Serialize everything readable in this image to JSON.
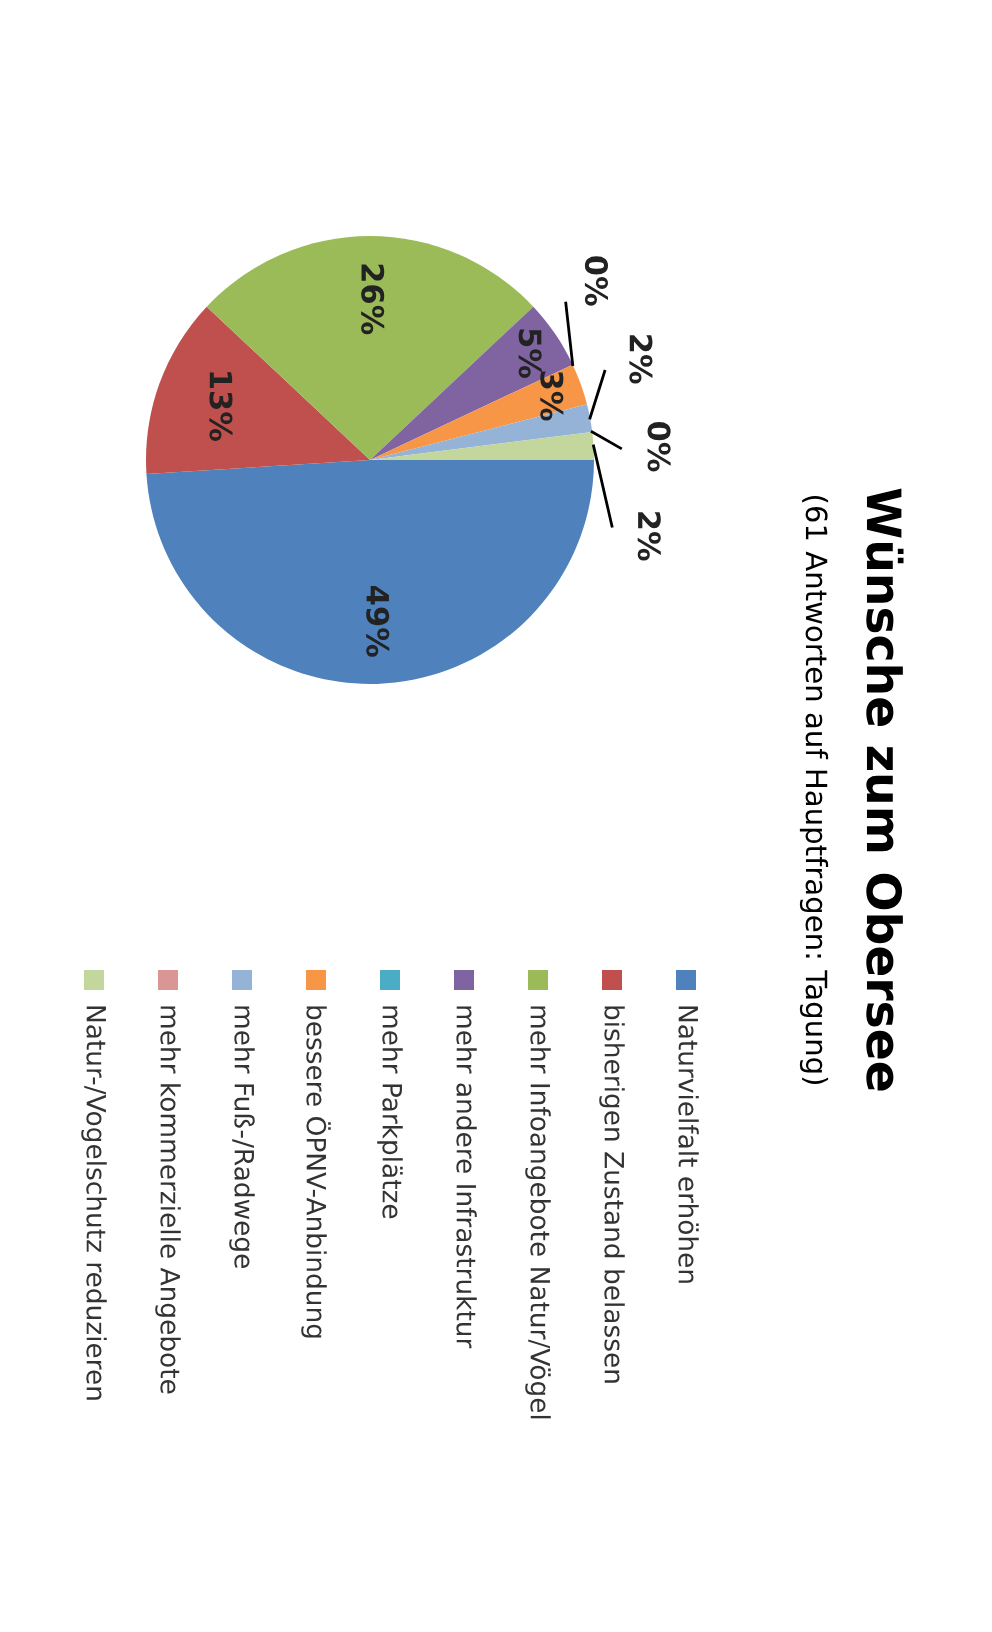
{
  "chart_data": {
    "type": "pie",
    "title": "Wünsche zum Obersee",
    "subtitle": "(61 Antworten auf Hauptfragen: Tagung)",
    "categories": [
      "Naturvielfalt erhöhen",
      "bisherigen Zustand belassen",
      "mehr Infoangebote Natur/Vögel",
      "mehr andere Infrastruktur",
      "mehr Parkplätze",
      "bessere ÖPNV-Anbindung",
      "mehr Fuß-/Radwege",
      "mehr kommerzielle Angebote",
      "Natur-/Vogelschutz reduzieren"
    ],
    "values": [
      49,
      13,
      26,
      5,
      0,
      3,
      2,
      0,
      2
    ],
    "colors": [
      "#4f81bd",
      "#c0504d",
      "#9bbb59",
      "#8064a2",
      "#4bacc6",
      "#f79646",
      "#95b3d7",
      "#d99694",
      "#c3d69b"
    ],
    "value_labels": [
      "49%",
      "13%",
      "26%",
      "5%",
      "0%",
      "3%",
      "2%",
      "0%",
      "2%"
    ],
    "legend": "right"
  }
}
